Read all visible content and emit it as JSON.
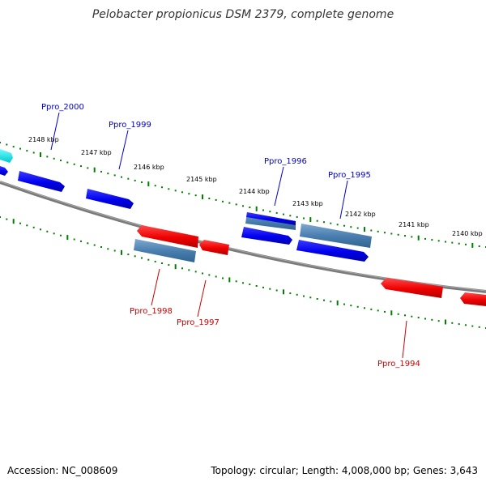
{
  "title": "Pelobacter propionicus DSM 2379, complete genome",
  "footer": {
    "accession": "Accession: NC_008609",
    "summary": "Topology: circular; Length: 4,008,000 bp; Genes: 3,643"
  },
  "ruler": {
    "ticks": [
      "2148 kbp",
      "2147 kbp",
      "2146 kbp",
      "2145 kbp",
      "2144 kbp",
      "2143 kbp",
      "2142 kbp",
      "2141 kbp",
      "2140 kbp"
    ]
  },
  "genes": [
    {
      "name": "Ppro_2000",
      "strand": "+",
      "color": "#0000cc"
    },
    {
      "name": "Ppro_1999",
      "strand": "+",
      "color": "#0000cc"
    },
    {
      "name": "Ppro_1996",
      "strand": "+",
      "color": "#0000cc"
    },
    {
      "name": "Ppro_1995",
      "strand": "+",
      "color": "#0000cc"
    },
    {
      "name": "Ppro_1998",
      "strand": "-",
      "color": "#cc0000"
    },
    {
      "name": "Ppro_1997",
      "strand": "-",
      "color": "#cc0000"
    },
    {
      "name": "Ppro_1994",
      "strand": "-",
      "color": "#cc0000"
    }
  ],
  "colors": {
    "forward_gene": "#0000ff",
    "reverse_gene": "#ff0000",
    "rna_feature": "#4682b4",
    "other_feature": "#00e5e5",
    "backbone": "#808080",
    "tick": "#008000",
    "forward_label": "#0000cc",
    "reverse_label": "#cc0000"
  }
}
